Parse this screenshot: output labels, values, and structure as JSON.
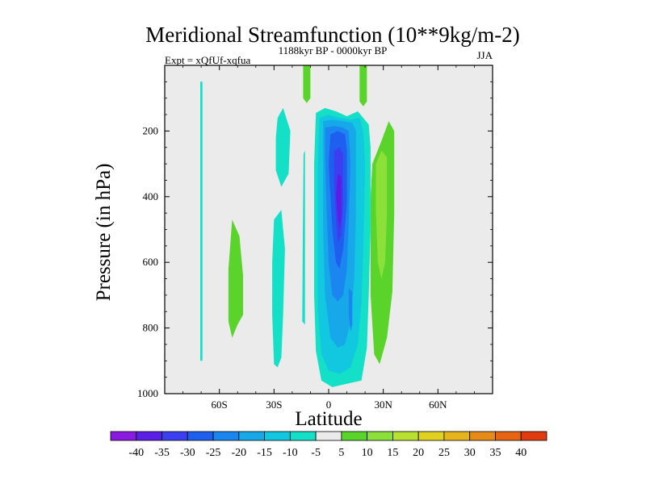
{
  "chart_data": {
    "type": "heatmap",
    "title": "Meridional Streamfunction (10**9kg/m-2)",
    "subtitle_left": "Expt = xQfUf-xqfua",
    "subtitle_center": "1188kyr BP - 0000kyr BP",
    "subtitle_right": "JJA",
    "xlabel": "Latitude",
    "ylabel": "Pressure (in hPa)",
    "xlim": [
      -90,
      90
    ],
    "ylim": [
      1000,
      0
    ],
    "x_ticks": [
      {
        "value": -60,
        "label": "60S"
      },
      {
        "value": -30,
        "label": "30S"
      },
      {
        "value": 0,
        "label": "0"
      },
      {
        "value": 30,
        "label": "30N"
      },
      {
        "value": 60,
        "label": "60N"
      }
    ],
    "y_ticks": [
      {
        "value": 200,
        "label": "200"
      },
      {
        "value": 400,
        "label": "400"
      },
      {
        "value": 600,
        "label": "600"
      },
      {
        "value": 800,
        "label": "800"
      },
      {
        "value": 1000,
        "label": "1000"
      }
    ],
    "colorbar": {
      "labels": [
        "-40",
        "-35",
        "-30",
        "-25",
        "-20",
        "-15",
        "-10",
        "-5",
        "5",
        "10",
        "15",
        "20",
        "25",
        "30",
        "35",
        "40"
      ],
      "colors": [
        "#8a1ae0",
        "#5b1ee6",
        "#3c3ff0",
        "#1f5ff0",
        "#1c86f0",
        "#16a8e8",
        "#12c7e0",
        "#14e0c8",
        "#ebebeb",
        "#5ad42a",
        "#8ce03a",
        "#b8e030",
        "#e0d020",
        "#e6b41c",
        "#e68a18",
        "#e66414",
        "#e03c10"
      ]
    },
    "background_color": "#ebebeb",
    "regions": [
      {
        "value": -7,
        "color": "#14e0c8",
        "points": [
          [
            -70.5,
            50
          ],
          [
            -69.3,
            50
          ],
          [
            -69.3,
            900
          ],
          [
            -70.5,
            900
          ]
        ]
      },
      {
        "value": -7,
        "color": "#14e0c8",
        "points": [
          [
            -30,
            470
          ],
          [
            -26,
            440
          ],
          [
            -24,
            560
          ],
          [
            -25,
            760
          ],
          [
            -26,
            890
          ],
          [
            -28,
            920
          ],
          [
            -30,
            910
          ],
          [
            -31,
            760
          ],
          [
            -31,
            600
          ]
        ]
      },
      {
        "value": -7,
        "color": "#14e0c8",
        "points": [
          [
            -28,
            160
          ],
          [
            -25,
            130
          ],
          [
            -21,
            200
          ],
          [
            -22,
            330
          ],
          [
            -26,
            370
          ],
          [
            -29,
            320
          ],
          [
            -29,
            220
          ]
        ]
      },
      {
        "value": -7,
        "color": "#14e0c8",
        "points": [
          [
            -13,
            260
          ],
          [
            -13,
            790
          ],
          [
            -14.5,
            780
          ],
          [
            -14.2,
            520
          ],
          [
            -13.8,
            270
          ]
        ]
      },
      {
        "value": 7,
        "color": "#5ad42a",
        "points": [
          [
            -53,
            470
          ],
          [
            -49,
            520
          ],
          [
            -47,
            640
          ],
          [
            -47,
            760
          ],
          [
            -50,
            790
          ],
          [
            -53,
            830
          ],
          [
            -55,
            780
          ],
          [
            -55,
            620
          ]
        ]
      },
      {
        "value": 7,
        "color": "#5ad42a",
        "points": [
          [
            -14,
            0
          ],
          [
            -10,
            0
          ],
          [
            -10,
            100
          ],
          [
            -12,
            115
          ],
          [
            -14,
            100
          ]
        ]
      },
      {
        "value": 7,
        "color": "#5ad42a",
        "points": [
          [
            17,
            0
          ],
          [
            21,
            0
          ],
          [
            21,
            110
          ],
          [
            19,
            125
          ],
          [
            17,
            110
          ]
        ]
      },
      {
        "value": 7,
        "color": "#5ad42a",
        "points": [
          [
            24,
            300
          ],
          [
            29,
            230
          ],
          [
            33,
            170
          ],
          [
            36,
            200
          ],
          [
            36,
            450
          ],
          [
            35,
            690
          ],
          [
            32,
            830
          ],
          [
            28,
            910
          ],
          [
            25,
            880
          ],
          [
            23,
            700
          ],
          [
            23,
            400
          ]
        ]
      },
      {
        "value": 12,
        "color": "#8ce03a",
        "points": [
          [
            26,
            300
          ],
          [
            29,
            260
          ],
          [
            32,
            280
          ],
          [
            32,
            450
          ],
          [
            31,
            600
          ],
          [
            29,
            650
          ],
          [
            27,
            600
          ],
          [
            26,
            450
          ]
        ]
      },
      {
        "value": -7,
        "color": "#14e0c8",
        "points": [
          [
            -7,
            145
          ],
          [
            -2,
            130
          ],
          [
            4,
            140
          ],
          [
            10,
            155
          ],
          [
            16,
            140
          ],
          [
            22,
            180
          ],
          [
            23,
            250
          ],
          [
            23,
            500
          ],
          [
            22,
            700
          ],
          [
            21,
            860
          ],
          [
            18,
            960
          ],
          [
            10,
            970
          ],
          [
            2,
            980
          ],
          [
            -4,
            960
          ],
          [
            -7,
            870
          ],
          [
            -8,
            700
          ],
          [
            -8,
            300
          ]
        ]
      },
      {
        "value": -12,
        "color": "#12c7e0",
        "points": [
          [
            -5,
            160
          ],
          [
            0,
            150
          ],
          [
            6,
            160
          ],
          [
            12,
            165
          ],
          [
            17,
            160
          ],
          [
            19,
            200
          ],
          [
            20,
            300
          ],
          [
            19,
            560
          ],
          [
            18,
            720
          ],
          [
            16,
            850
          ],
          [
            12,
            920
          ],
          [
            6,
            940
          ],
          [
            0,
            930
          ],
          [
            -4,
            880
          ],
          [
            -6,
            740
          ],
          [
            -6,
            300
          ]
        ]
      },
      {
        "value": -17,
        "color": "#16a8e8",
        "points": [
          [
            -3,
            170
          ],
          [
            2,
            165
          ],
          [
            8,
            170
          ],
          [
            13,
            175
          ],
          [
            15,
            200
          ],
          [
            15,
            450
          ],
          [
            14,
            650
          ],
          [
            12,
            780
          ],
          [
            9,
            850
          ],
          [
            5,
            860
          ],
          [
            1,
            830
          ],
          [
            -2,
            700
          ],
          [
            -3,
            500
          ],
          [
            -3,
            260
          ]
        ]
      },
      {
        "value": -22,
        "color": "#1c86f0",
        "points": [
          [
            -2,
            190
          ],
          [
            3,
            185
          ],
          [
            8,
            190
          ],
          [
            11,
            200
          ],
          [
            12,
            300
          ],
          [
            11,
            480
          ],
          [
            10,
            620
          ],
          [
            8,
            700
          ],
          [
            5,
            720
          ],
          [
            2,
            700
          ],
          [
            0,
            600
          ],
          [
            -1,
            450
          ],
          [
            -2,
            280
          ]
        ]
      },
      {
        "value": -22,
        "color": "#1c86f0",
        "points": [
          [
            11,
            680
          ],
          [
            13,
            690
          ],
          [
            13,
            790
          ],
          [
            12,
            810
          ],
          [
            11,
            760
          ]
        ]
      },
      {
        "value": -27,
        "color": "#1f5ff0",
        "points": [
          [
            1,
            210
          ],
          [
            5,
            200
          ],
          [
            9,
            210
          ],
          [
            10,
            260
          ],
          [
            10,
            420
          ],
          [
            8,
            560
          ],
          [
            6,
            620
          ],
          [
            4,
            600
          ],
          [
            2,
            500
          ],
          [
            1,
            400
          ],
          [
            0,
            300
          ]
        ]
      },
      {
        "value": -32,
        "color": "#3c3ff0",
        "points": [
          [
            3,
            260
          ],
          [
            6,
            250
          ],
          [
            8,
            270
          ],
          [
            8,
            420
          ],
          [
            7,
            520
          ],
          [
            5,
            540
          ],
          [
            4,
            470
          ],
          [
            3,
            350
          ]
        ]
      },
      {
        "value": -37,
        "color": "#5b1ee6",
        "points": [
          [
            5,
            330
          ],
          [
            7,
            340
          ],
          [
            7,
            460
          ],
          [
            6,
            500
          ],
          [
            5,
            460
          ],
          [
            4,
            400
          ]
        ]
      }
    ]
  }
}
